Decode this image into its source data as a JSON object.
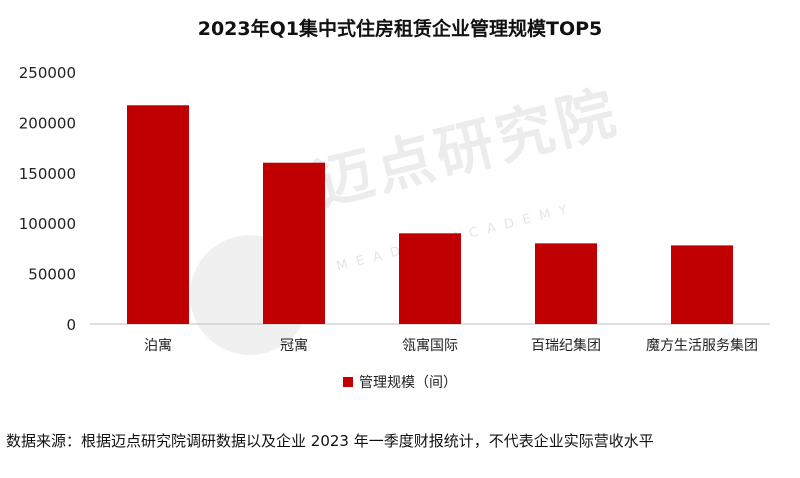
{
  "chart_data": {
    "type": "bar",
    "title": "2023年Q1集中式住房租赁企业管理规模TOP5",
    "categories": [
      "泊寓",
      "冠寓",
      "瓴寓国际",
      "百瑞纪集团",
      "魔方生活服务集团"
    ],
    "series": [
      {
        "name": "管理规模（间）",
        "values": [
          217000,
          160000,
          90000,
          80000,
          78000
        ]
      }
    ],
    "ylim": [
      0,
      250000
    ],
    "yticks": [
      "0",
      "50000",
      "100000",
      "150000",
      "200000",
      "250000"
    ],
    "xlabel": "",
    "ylabel": "",
    "grid": false,
    "legend_position": "bottom",
    "bar_color": "#c00000"
  },
  "watermark": {
    "text_cn": "迈点研究院",
    "text_en": "MEADIN ACADEMY"
  },
  "source_note": "数据来源：根据迈点研究院调研数据以及企业 2023 年一季度财报统计，不代表企业实际营收水平"
}
